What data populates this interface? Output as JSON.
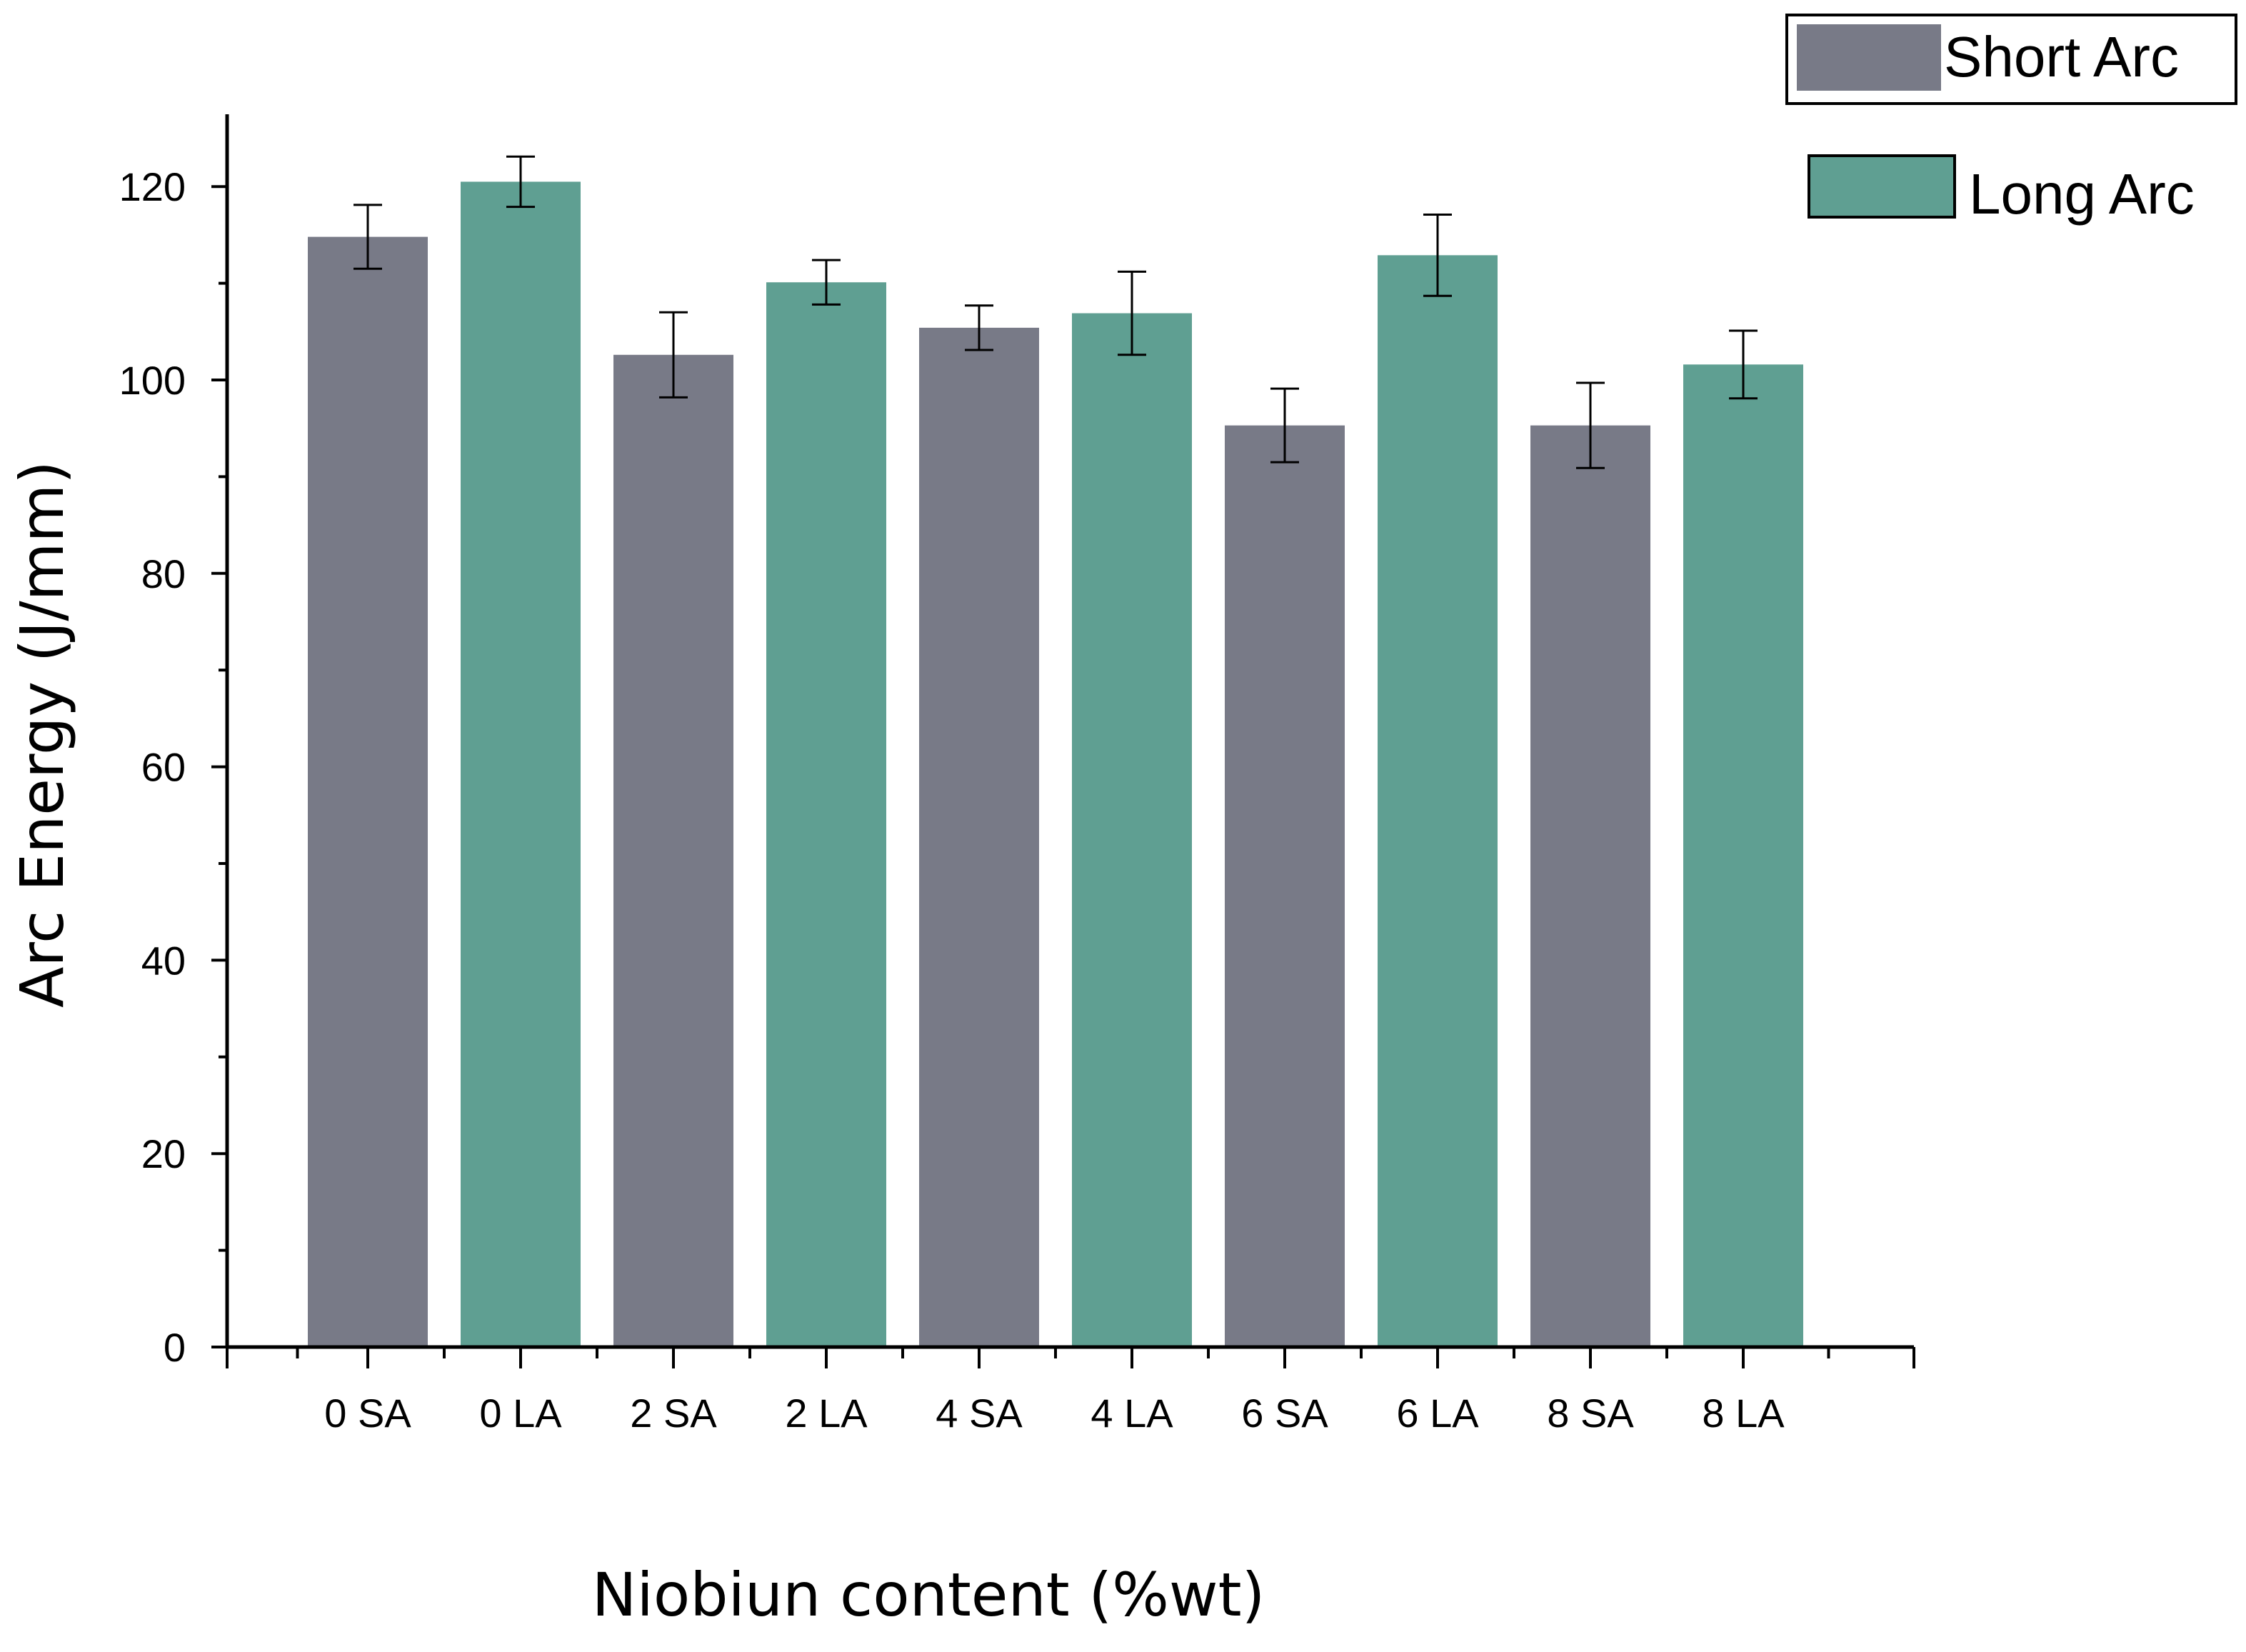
{
  "chart_data": {
    "type": "bar",
    "title": "",
    "xlabel": "Niobiun content (%wt)",
    "ylabel": "Arc Energy (J/mm)",
    "ylim": [
      0,
      128
    ],
    "yticks": [
      0,
      20,
      40,
      60,
      80,
      100,
      120
    ],
    "grid": false,
    "legend_position": "top-right",
    "categories": [
      "0 SA",
      "0 LA",
      "2 SA",
      "2 LA",
      "4 SA",
      "4 LA",
      "6 SA",
      "6 LA",
      "8 SA",
      "8 LA"
    ],
    "series": [
      {
        "name": "Short Arc",
        "color": "#787a87",
        "legend_label": "Short Arc"
      },
      {
        "name": "Long Arc",
        "color": "#5f9f92",
        "legend_label": "Long Arc"
      }
    ],
    "bars": [
      {
        "category": "0 SA",
        "series": "Short Arc",
        "value": 114.8,
        "error": 3.3
      },
      {
        "category": "0 LA",
        "series": "Long Arc",
        "value": 120.5,
        "error": 2.6
      },
      {
        "category": "2 SA",
        "series": "Short Arc",
        "value": 102.6,
        "error": 4.4
      },
      {
        "category": "2 LA",
        "series": "Long Arc",
        "value": 110.1,
        "error": 2.3
      },
      {
        "category": "4 SA",
        "series": "Short Arc",
        "value": 105.4,
        "error": 2.3
      },
      {
        "category": "4 LA",
        "series": "Long Arc",
        "value": 106.9,
        "error": 4.3
      },
      {
        "category": "6 SA",
        "series": "Short Arc",
        "value": 95.3,
        "error": 3.8
      },
      {
        "category": "6 LA",
        "series": "Long Arc",
        "value": 112.9,
        "error": 4.2
      },
      {
        "category": "8 SA",
        "series": "Short Arc",
        "value": 95.3,
        "error": 4.4
      },
      {
        "category": "8 LA",
        "series": "Long Arc",
        "value": 101.6,
        "error": 3.5
      }
    ]
  }
}
